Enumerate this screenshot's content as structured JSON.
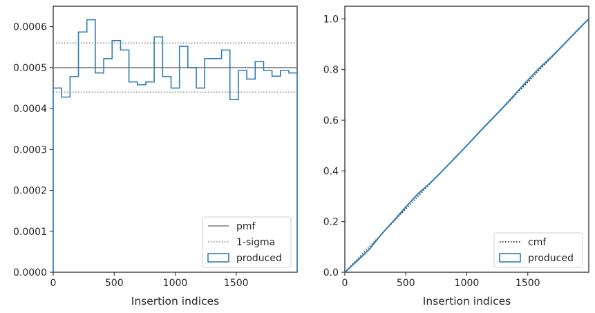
{
  "chart_data": [
    {
      "type": "line",
      "subtype": "step-histogram",
      "title": "",
      "xlabel": "Insertion indices",
      "ylabel": "",
      "xlim": [
        0,
        2000
      ],
      "ylim": [
        0,
        0.00065
      ],
      "xticks": [
        0,
        500,
        1000,
        1500
      ],
      "xtick_labels": [
        "0",
        "500",
        "1000",
        "1500"
      ],
      "yticks": [
        0,
        0.0001,
        0.0002,
        0.0003,
        0.0004,
        0.0005,
        0.0006
      ],
      "ytick_labels": [
        "0.0000",
        "0.0001",
        "0.0002",
        "0.0003",
        "0.0004",
        "0.0005",
        "0.0006"
      ],
      "grid": false,
      "legend_position": "lower right",
      "legend": [
        "pmf",
        "1-sigma",
        "produced"
      ],
      "reference_lines": [
        {
          "name": "pmf",
          "y": 0.0005,
          "style": "solid",
          "color": "#808080"
        },
        {
          "name": "1-sigma",
          "y": 0.00056,
          "style": "dotted",
          "color": "#808080"
        },
        {
          "name": "1-sigma",
          "y": 0.00044,
          "style": "dotted",
          "color": "#808080"
        }
      ],
      "series": [
        {
          "name": "produced",
          "color": "#2e7db5",
          "bin_width": 69,
          "bin_starts": [
            0,
            69,
            138,
            207,
            276,
            345,
            414,
            483,
            552,
            621,
            690,
            759,
            828,
            897,
            966,
            1035,
            1104,
            1173,
            1242,
            1311,
            1380,
            1449,
            1518,
            1587,
            1656,
            1725,
            1794,
            1863,
            1932
          ],
          "values": [
            0.00045,
            0.000428,
            0.000478,
            0.000587,
            0.000617,
            0.000487,
            0.000522,
            0.000566,
            0.000543,
            0.000465,
            0.000458,
            0.000465,
            0.000575,
            0.000478,
            0.00045,
            0.000552,
            0.0005,
            0.00045,
            0.000522,
            0.000522,
            0.000543,
            0.000422,
            0.000493,
            0.000472,
            0.000515,
            0.000493,
            0.000479,
            0.000493,
            0.000487
          ]
        }
      ]
    },
    {
      "type": "line",
      "title": "",
      "xlabel": "Insertion indices",
      "ylabel": "",
      "xlim": [
        0,
        2000
      ],
      "ylim": [
        0,
        1.05
      ],
      "xticks": [
        0,
        500,
        1000,
        1500
      ],
      "xtick_labels": [
        "0",
        "500",
        "1000",
        "1500"
      ],
      "yticks": [
        0,
        0.2,
        0.4,
        0.6,
        0.8,
        1.0
      ],
      "ytick_labels": [
        "0.0",
        "0.2",
        "0.4",
        "0.6",
        "0.8",
        "1.0"
      ],
      "grid": false,
      "legend_position": "lower right",
      "legend": [
        "cmf",
        "produced"
      ],
      "series": [
        {
          "name": "cmf",
          "style": "dotted",
          "color": "#000000",
          "x": [
            0,
            2000
          ],
          "y": [
            0,
            1.0
          ]
        },
        {
          "name": "produced",
          "style": "solid",
          "color": "#2e7db5",
          "x": [
            0,
            100,
            200,
            300,
            400,
            500,
            600,
            700,
            800,
            900,
            1000,
            1100,
            1200,
            1300,
            1400,
            1500,
            1600,
            1700,
            1800,
            1900,
            2000
          ],
          "y": [
            0,
            0.044,
            0.09,
            0.15,
            0.203,
            0.258,
            0.31,
            0.352,
            0.4,
            0.45,
            0.5,
            0.552,
            0.602,
            0.652,
            0.705,
            0.758,
            0.808,
            0.853,
            0.902,
            0.952,
            1.0
          ]
        }
      ]
    }
  ]
}
